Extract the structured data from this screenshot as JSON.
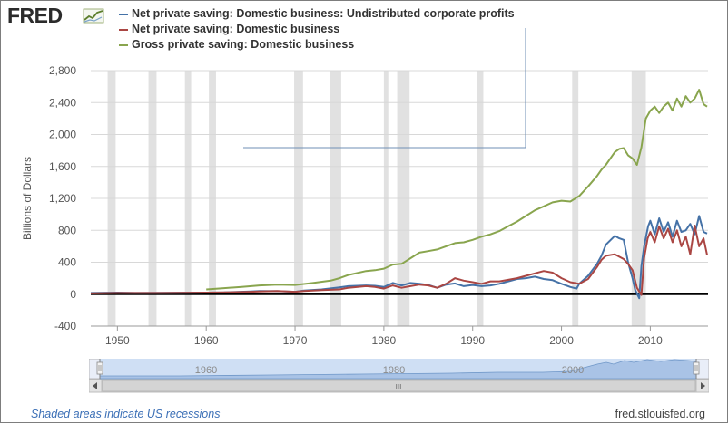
{
  "brand": {
    "name": "FRED"
  },
  "legend": {
    "items": [
      {
        "label": "Net private saving: Domestic business: Undistributed corporate profits",
        "color": "#4572a7"
      },
      {
        "label": "Net private saving: Domestic business",
        "color": "#aa4643"
      },
      {
        "label": "Gross private saving: Domestic business",
        "color": "#89a54e"
      }
    ]
  },
  "footer": {
    "recession_note": "Shaded areas indicate US recessions",
    "source": "fred.stlouisfed.org"
  },
  "navigator": {
    "labels": [
      "1960",
      "1980",
      "2000"
    ],
    "scrollbar_grip": "III"
  },
  "chart_data": {
    "type": "line",
    "title": "",
    "xlabel": "",
    "ylabel": "Billions of Dollars",
    "xlim": [
      1947,
      2016.5
    ],
    "ylim": [
      -400,
      2800
    ],
    "yticks": [
      -400,
      0,
      400,
      800,
      1200,
      1600,
      2000,
      2400,
      2800
    ],
    "ytick_labels": [
      "-400",
      "0",
      "400",
      "800",
      "1,200",
      "1,600",
      "2,000",
      "2,400",
      "2,800"
    ],
    "xticks": [
      1950,
      1960,
      1970,
      1980,
      1990,
      2000,
      2010
    ],
    "grid": true,
    "legend_position": "top-left",
    "recessions": [
      [
        1948.9,
        1949.8
      ],
      [
        1953.5,
        1954.4
      ],
      [
        1957.6,
        1958.3
      ],
      [
        1960.3,
        1961.1
      ],
      [
        1969.9,
        1970.9
      ],
      [
        1973.9,
        1975.2
      ],
      [
        1980.0,
        1980.5
      ],
      [
        1981.5,
        1982.9
      ],
      [
        1990.5,
        1991.2
      ],
      [
        2001.2,
        2001.9
      ],
      [
        2007.9,
        2009.5
      ]
    ],
    "series": [
      {
        "name": "Net private saving: Domestic business: Undistributed corporate profits",
        "color": "#4572a7",
        "x": [
          1947,
          1950,
          1952,
          1955,
          1960,
          1962,
          1965,
          1966,
          1968,
          1970,
          1971,
          1973,
          1975,
          1976,
          1978,
          1979,
          1980,
          1981,
          1982,
          1983,
          1984,
          1985,
          1986,
          1987,
          1988,
          1989,
          1990,
          1991,
          1992,
          1993,
          1994,
          1995,
          1996,
          1997,
          1998,
          1999,
          2000,
          2001,
          2001.7,
          2002,
          2003,
          2004,
          2004.5,
          2005,
          2006,
          2006.5,
          2007,
          2007.5,
          2008,
          2008.3,
          2008.75,
          2009,
          2009.3,
          2009.75,
          2010,
          2010.5,
          2011,
          2011.5,
          2012,
          2012.5,
          2013,
          2013.5,
          2014,
          2014.5,
          2015,
          2015.5,
          2016,
          2016.4
        ],
        "y": [
          15,
          20,
          15,
          18,
          20,
          22,
          35,
          40,
          38,
          30,
          45,
          60,
          85,
          100,
          110,
          105,
          90,
          140,
          110,
          140,
          130,
          115,
          80,
          120,
          135,
          100,
          115,
          100,
          110,
          130,
          160,
          190,
          200,
          220,
          190,
          175,
          130,
          90,
          70,
          130,
          230,
          380,
          480,
          620,
          730,
          700,
          680,
          400,
          200,
          50,
          -50,
          350,
          600,
          850,
          920,
          750,
          950,
          780,
          900,
          720,
          920,
          780,
          800,
          880,
          750,
          980,
          780,
          760
        ]
      },
      {
        "name": "Net private saving: Domestic business",
        "color": "#aa4643",
        "x": [
          1947,
          1950,
          1955,
          1960,
          1962,
          1965,
          1966,
          1968,
          1970,
          1971,
          1973,
          1975,
          1976,
          1978,
          1979,
          1980,
          1981,
          1982,
          1983,
          1984,
          1985,
          1986,
          1987,
          1988,
          1989,
          1990,
          1991,
          1992,
          1993,
          1994,
          1995,
          1996,
          1997,
          1998,
          1999,
          2000,
          2001,
          2002,
          2003,
          2004,
          2004.5,
          2005,
          2006,
          2007,
          2007.5,
          2008,
          2008.5,
          2009,
          2009.3,
          2009.7,
          2010,
          2010.5,
          2011,
          2011.5,
          2012,
          2012.5,
          2013,
          2013.5,
          2014,
          2014.5,
          2015,
          2015.5,
          2016,
          2016.4
        ],
        "y": [
          10,
          15,
          15,
          20,
          22,
          30,
          35,
          40,
          30,
          40,
          50,
          60,
          80,
          100,
          90,
          70,
          110,
          80,
          100,
          120,
          110,
          80,
          130,
          200,
          170,
          150,
          130,
          160,
          160,
          180,
          200,
          230,
          260,
          290,
          270,
          200,
          150,
          130,
          190,
          340,
          430,
          480,
          500,
          440,
          380,
          300,
          80,
          -10,
          450,
          700,
          780,
          650,
          850,
          700,
          820,
          650,
          800,
          600,
          720,
          500,
          860,
          600,
          700,
          490
        ]
      },
      {
        "name": "Gross private saving: Domestic business",
        "color": "#89a54e",
        "x": [
          1960,
          1962,
          1964,
          1966,
          1968,
          1970,
          1972,
          1974,
          1975,
          1976,
          1978,
          1979,
          1980,
          1981,
          1982,
          1983,
          1984,
          1985,
          1986,
          1987,
          1988,
          1989,
          1990,
          1991,
          1992,
          1993,
          1994,
          1995,
          1996,
          1997,
          1998,
          1999,
          2000,
          2001,
          2002,
          2003,
          2004,
          2004.5,
          2005,
          2005.5,
          2006,
          2006.5,
          2007,
          2007.5,
          2008,
          2008.5,
          2009,
          2009.5,
          2010,
          2010.5,
          2011,
          2011.5,
          2012,
          2012.5,
          2013,
          2013.5,
          2014,
          2014.5,
          2015,
          2015.5,
          2016,
          2016.4
        ],
        "y": [
          60,
          75,
          90,
          110,
          120,
          115,
          140,
          170,
          200,
          240,
          290,
          300,
          320,
          370,
          380,
          450,
          520,
          540,
          560,
          600,
          640,
          650,
          680,
          720,
          750,
          790,
          850,
          910,
          980,
          1050,
          1100,
          1150,
          1170,
          1160,
          1230,
          1350,
          1480,
          1560,
          1620,
          1700,
          1780,
          1820,
          1830,
          1740,
          1700,
          1620,
          1840,
          2200,
          2300,
          2350,
          2270,
          2350,
          2400,
          2300,
          2450,
          2350,
          2480,
          2400,
          2450,
          2560,
          2380,
          2350
        ]
      }
    ]
  }
}
